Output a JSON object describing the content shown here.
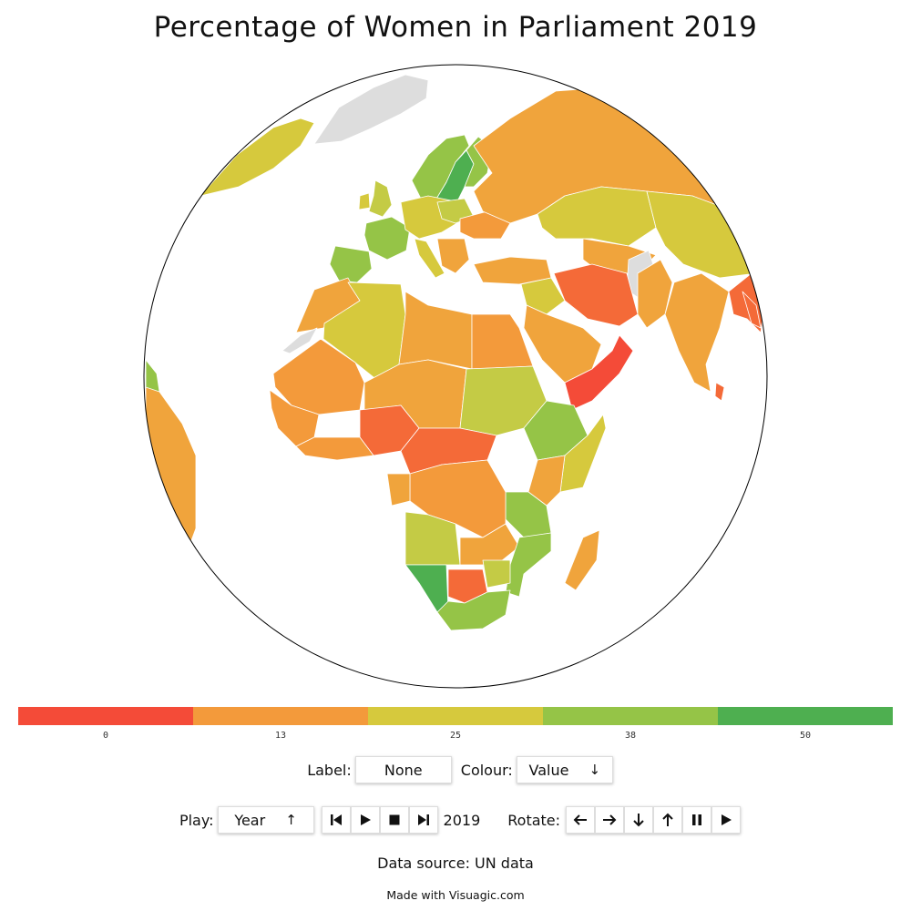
{
  "title": "Percentage of Women in Parliament 2019",
  "legend": {
    "colors": [
      "#f44b38",
      "#f39a3b",
      "#d6c93d",
      "#95c447",
      "#4eaf50"
    ],
    "ticks": [
      "0",
      "13",
      "25",
      "38",
      "50"
    ]
  },
  "map_colors": {
    "red": "#f44b38",
    "orange_red": "#f46a38",
    "orange": "#f39a3b",
    "orange_light": "#f0a43c",
    "yellow": "#d6c93d",
    "yellow_green": "#c4cb45",
    "green_light": "#95c447",
    "green": "#4eaf50",
    "no_data": "#dddddd",
    "ocean": "#ffffff"
  },
  "controls": {
    "label_text": "Label:",
    "label_value": "None",
    "colour_text": "Colour:",
    "colour_value": "Value",
    "colour_arrow": "↓",
    "play_text": "Play:",
    "play_value": "Year",
    "play_arrow": "↑",
    "year": "2019",
    "rotate_text": "Rotate:"
  },
  "icons": {
    "first": "first-icon",
    "play": "play-icon",
    "stop": "stop-icon",
    "last": "last-icon",
    "left": "arrow-left-icon",
    "right": "arrow-right-icon",
    "down": "arrow-down-icon",
    "up": "arrow-up-icon",
    "pause": "pause-icon",
    "rotate_play": "play-icon"
  },
  "footer": {
    "source": "Data source: UN data",
    "made_with": "Made with Visuagic.com"
  }
}
